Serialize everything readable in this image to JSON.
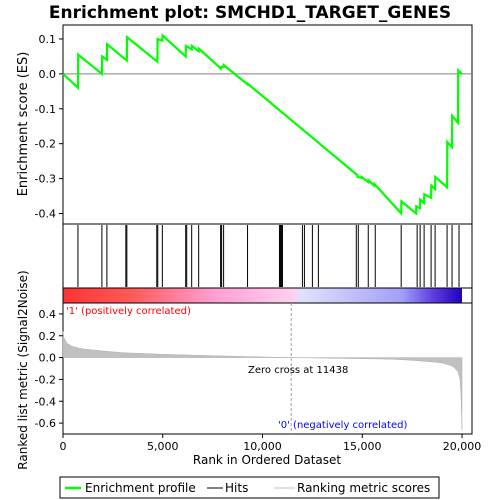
{
  "colors": {
    "es_line": "#00ff00",
    "hit": "#000000",
    "metric_fill": "#c0c0c0",
    "pos_label": "#ff0000",
    "neg_label": "#0000ff",
    "zero_line": "#808080",
    "frame": "#000000"
  },
  "legend": {
    "entries": [
      {
        "label": "Enrichment profile",
        "color": "#00ff00",
        "style": "thick-line"
      },
      {
        "label": "Hits",
        "color": "#000000",
        "style": "thin-line"
      },
      {
        "label": "Ranking metric scores",
        "color": "#c0c0c0",
        "style": "thin-line"
      }
    ]
  },
  "chart_data": [
    {
      "type": "line",
      "title": "Enrichment plot: SMCHD1_TARGET_GENES",
      "ylabel": "Enrichment score (ES)",
      "xlim": [
        0,
        20500
      ],
      "ylim": [
        -0.43,
        0.14
      ],
      "yticks": [
        -0.4,
        -0.3,
        -0.2,
        -0.1,
        0.0,
        0.1
      ],
      "ytick_labels": [
        "-0.4",
        "-0.3",
        "-0.2",
        "-0.1",
        "0.0",
        "0.1"
      ],
      "grid": false,
      "series": [
        {
          "x": [
            0,
            750,
            760,
            1950,
            1960,
            2200,
            2210,
            3200,
            3210,
            4730,
            4740,
            4980,
            4990,
            6150,
            6160,
            6450,
            6460,
            6800,
            6810,
            7920,
            7930,
            8050,
            8060,
            9250,
            9260,
            14750,
            14760,
            14950,
            14960,
            15300,
            15310,
            15600,
            15610,
            16950,
            16960,
            17700,
            17710,
            17900,
            17910,
            18100,
            18110,
            18450,
            18460,
            18650,
            18660,
            19250,
            19260,
            19500,
            19510,
            19800,
            19810,
            20000
          ],
          "y": [
            0.0,
            -0.04,
            0.055,
            0.0,
            0.05,
            0.04,
            0.085,
            0.038,
            0.105,
            0.035,
            0.1,
            0.095,
            0.11,
            0.05,
            0.08,
            0.07,
            0.08,
            0.065,
            0.072,
            0.015,
            0.02,
            0.02,
            0.025,
            -0.03,
            -0.028,
            -0.29,
            -0.295,
            -0.298,
            -0.295,
            -0.31,
            -0.305,
            -0.32,
            -0.315,
            -0.4,
            -0.365,
            -0.4,
            -0.38,
            -0.385,
            -0.36,
            -0.37,
            -0.345,
            -0.355,
            -0.32,
            -0.33,
            -0.295,
            -0.325,
            -0.195,
            -0.21,
            -0.12,
            -0.14,
            0.01,
            0.0
          ]
        }
      ]
    },
    {
      "type": "heatmap",
      "description_hits": "gene set hits along the ranked list",
      "hits": [
        750,
        1950,
        2200,
        3150,
        3200,
        4700,
        4750,
        4980,
        6150,
        6200,
        6450,
        6800,
        7900,
        7950,
        8050,
        9250,
        10850,
        10900,
        10950,
        11000,
        12000,
        12100,
        12500,
        12800,
        14700,
        14800,
        15300,
        15650,
        16950,
        17750,
        17900,
        18100,
        18450,
        18650,
        19250,
        19500,
        19850
      ],
      "gradient_stops": [
        {
          "rank": 0,
          "color": "#ff3333"
        },
        {
          "rank": 3500,
          "color": "#ff5a5a"
        },
        {
          "rank": 7500,
          "color": "#ff9ed2"
        },
        {
          "rank": 11500,
          "color": "#ffd0f0"
        },
        {
          "rank": 12000,
          "color": "#e0e0ff"
        },
        {
          "rank": 17000,
          "color": "#a0a0f8"
        },
        {
          "rank": 18500,
          "color": "#6040e0"
        },
        {
          "rank": 20000,
          "color": "#2000c0"
        }
      ]
    },
    {
      "type": "area",
      "xlabel": "Rank in Ordered Dataset",
      "ylabel": "Ranked list metric (Signal2Noise)",
      "xlim": [
        0,
        20500
      ],
      "ylim": [
        -0.7,
        0.5
      ],
      "yticks": [
        -0.6,
        -0.4,
        -0.2,
        0.0,
        0.2,
        0.4
      ],
      "ytick_labels": [
        "-0.6",
        "-0.4",
        "-0.2",
        "0.0",
        "0.2",
        "0.4"
      ],
      "xticks": [
        0,
        5000,
        10000,
        15000,
        20000
      ],
      "xtick_labels": [
        "0",
        "5,000",
        "10,000",
        "15,000",
        "20,000"
      ],
      "zero_cross": 11438,
      "zero_cross_label": "Zero cross at 11438",
      "pos_label": "'1' (positively correlated)",
      "neg_label": "'0' (negatively correlated)",
      "x": [
        0,
        50,
        200,
        500,
        1000,
        2000,
        3000,
        5000,
        7000,
        9000,
        11438,
        13000,
        15000,
        16500,
        17500,
        18500,
        19000,
        19400,
        19600,
        19800,
        19900,
        19950,
        20000
      ],
      "values": [
        0.24,
        0.18,
        0.13,
        0.1,
        0.08,
        0.06,
        0.045,
        0.03,
        0.02,
        0.01,
        0.0,
        -0.005,
        -0.01,
        -0.015,
        -0.025,
        -0.04,
        -0.05,
        -0.07,
        -0.09,
        -0.13,
        -0.2,
        -0.35,
        -0.66
      ]
    }
  ]
}
